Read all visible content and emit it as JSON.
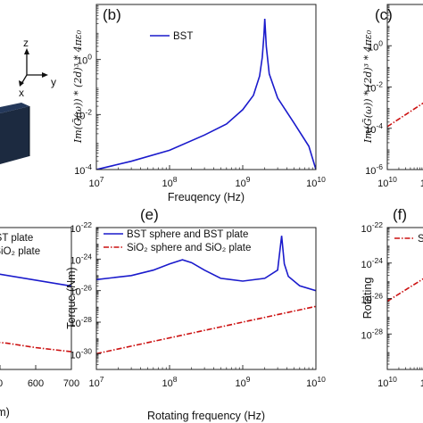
{
  "chart_data": [
    {
      "panel": "(b)",
      "type": "line",
      "xlabel": "Freuqency (Hz)",
      "ylabel": "Im(G̃(ω)) * (2d)³ * 4πε₀",
      "x_scale": "log",
      "y_scale": "log",
      "xlim": [
        10000000.0,
        10000000000.0
      ],
      "ylim": [
        0.0001,
        100
      ],
      "x_ticks": [
        {
          "v": 10000000.0,
          "m": "10",
          "e": "7"
        },
        {
          "v": 100000000.0,
          "m": "10",
          "e": "8"
        },
        {
          "v": 1000000000.0,
          "m": "10",
          "e": "9"
        },
        {
          "v": 10000000000.0,
          "m": "10",
          "e": "10"
        }
      ],
      "y_ticks": [
        {
          "v": 0.0001,
          "m": "10",
          "e": "-4"
        },
        {
          "v": 0.01,
          "m": "10",
          "e": "-2"
        },
        {
          "v": 1,
          "m": "10",
          "e": "0"
        }
      ],
      "legend_position": "top-left",
      "series": [
        {
          "name": "BST",
          "color": "#1a1acc",
          "style": "solid",
          "x": [
            10000000.0,
            30000000.0,
            100000000.0,
            300000000.0,
            600000000.0,
            1000000000.0,
            1400000000.0,
            1700000000.0,
            1850000000.0,
            1950000000.0,
            2000000000.0,
            2100000000.0,
            2300000000.0,
            3000000000.0,
            5000000000.0,
            8000000000.0,
            10000000000.0
          ],
          "y": [
            0.0001,
            0.0002,
            0.0005,
            0.0018,
            0.0045,
            0.015,
            0.05,
            0.25,
            1.2,
            8,
            30,
            3,
            0.3,
            0.04,
            0.005,
            0.0007,
            0.0001
          ]
        }
      ]
    },
    {
      "panel": "(c)",
      "type": "line",
      "ylabel": "Im(G̃(ω)) * (2d)³ * 4πε₀",
      "x_scale": "log",
      "y_scale": "log",
      "xlim": [
        10000000000.0,
        1000000000000.0
      ],
      "ylim": [
        1e-06,
        100
      ],
      "x_ticks": [
        {
          "v": 10000000000.0,
          "m": "10",
          "e": "10"
        },
        {
          "v": 100000000000.0,
          "m": "10",
          "e": ""
        }
      ],
      "y_ticks": [
        {
          "v": 1e-06,
          "m": "10",
          "e": "-6"
        },
        {
          "v": 0.0001,
          "m": "10",
          "e": "-4"
        },
        {
          "v": 0.01,
          "m": "10",
          "e": "-2"
        },
        {
          "v": 1,
          "m": "10",
          "e": "0"
        }
      ],
      "series": [
        {
          "name": "",
          "color": "#cc1111",
          "style": "dashdot",
          "x": [
            10000000000.0,
            100000000000.0
          ],
          "y": [
            0.00012,
            0.002
          ]
        }
      ]
    },
    {
      "panel": "",
      "type": "line",
      "xlabel": "(nm)",
      "x_scale": "linear",
      "y_scale": "log",
      "xlim": [
        400,
        700
      ],
      "ylim": [
        1e-30,
        1e-22
      ],
      "x_ticks": [
        {
          "v": 500,
          "m": "0",
          "e": ""
        },
        {
          "v": 600,
          "m": "600",
          "e": ""
        },
        {
          "v": 700,
          "m": "700",
          "e": ""
        }
      ],
      "legend_position": "top-left",
      "series": [
        {
          "name": "nd BST plate",
          "color": "#1a1acc",
          "style": "solid",
          "x": [
            400,
            700
          ],
          "y": [
            5e-25,
            5e-26
          ]
        },
        {
          "name": "and SiO₂ plate",
          "color": "#cc1111",
          "style": "dashdot",
          "x": [
            400,
            460,
            520,
            600,
            700
          ],
          "y": [
            5e-29,
            4e-29,
            3e-29,
            1.7e-29,
            1e-29
          ]
        }
      ]
    },
    {
      "panel": "(e)",
      "type": "line",
      "xlabel": "Rotating frequency (Hz)",
      "ylabel": "Torque (Nm)",
      "x_scale": "log",
      "y_scale": "log",
      "xlim": [
        10000000.0,
        10000000000.0
      ],
      "ylim": [
        1e-31,
        1e-22
      ],
      "x_ticks": [
        {
          "v": 10000000.0,
          "m": "10",
          "e": "7"
        },
        {
          "v": 100000000.0,
          "m": "10",
          "e": "8"
        },
        {
          "v": 1000000000.0,
          "m": "10",
          "e": "9"
        },
        {
          "v": 10000000000.0,
          "m": "10",
          "e": "10"
        }
      ],
      "y_ticks": [
        {
          "v": 1e-30,
          "m": "10",
          "e": "-30"
        },
        {
          "v": 1e-28,
          "m": "10",
          "e": "-28"
        },
        {
          "v": 1e-26,
          "m": "10",
          "e": "-26"
        },
        {
          "v": 1e-24,
          "m": "10",
          "e": "-24"
        },
        {
          "v": 1e-22,
          "m": "10",
          "e": "-22"
        }
      ],
      "legend_position": "top-left",
      "series": [
        {
          "name": "BST sphere and BST plate",
          "color": "#1a1acc",
          "style": "solid",
          "x": [
            10000000.0,
            30000000.0,
            60000000.0,
            100000000.0,
            150000000.0,
            200000000.0,
            300000000.0,
            500000000.0,
            1000000000.0,
            2000000000.0,
            3000000000.0,
            3400000000.0,
            3700000000.0,
            4200000000.0,
            6000000000.0,
            10000000000.0
          ],
          "y": [
            5e-26,
            9e-26,
            2e-25,
            5e-25,
            9e-25,
            6e-25,
            2e-25,
            6e-26,
            4e-26,
            6e-26,
            2e-25,
            3e-23,
            5e-25,
            8e-26,
            2e-26,
            1e-26
          ]
        },
        {
          "name": "SiO₂ sphere and SiO₂ plate",
          "color": "#cc1111",
          "style": "dashdot",
          "x": [
            10000000.0,
            10000000000.0
          ],
          "y": [
            1e-30,
            1e-27
          ]
        }
      ]
    },
    {
      "panel": "(f)",
      "type": "line",
      "ylabel": "Rotating",
      "x_scale": "log",
      "y_scale": "log",
      "xlim": [
        10000000000.0,
        1000000000000.0
      ],
      "ylim": [
        1e-30,
        1e-22
      ],
      "x_ticks": [
        {
          "v": 10000000000.0,
          "m": "10",
          "e": "10"
        },
        {
          "v": 100000000000.0,
          "m": "10",
          "e": ""
        }
      ],
      "y_ticks": [
        {
          "v": 1e-28,
          "m": "10",
          "e": "-28"
        },
        {
          "v": 1e-26,
          "m": "10",
          "e": "-26"
        },
        {
          "v": 1e-24,
          "m": "10",
          "e": "-24"
        },
        {
          "v": 1e-22,
          "m": "10",
          "e": "-22"
        }
      ],
      "legend_position": "top-left",
      "series": [
        {
          "name": "SiO",
          "color": "#cc1111",
          "style": "dashdot",
          "x": [
            10000000000.0,
            120000000000.0
          ],
          "y": [
            7e-27,
            2e-25
          ]
        }
      ]
    }
  ],
  "schematic": {
    "axes": {
      "z": "z",
      "y": "y",
      "x": "x"
    }
  }
}
